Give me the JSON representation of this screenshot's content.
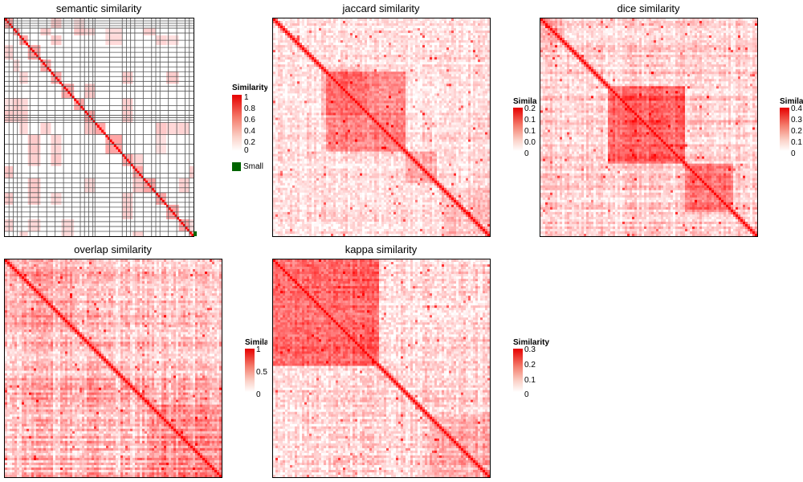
{
  "chart_data": [
    {
      "type": "heatmap",
      "title": "semantic similarity",
      "legend": {
        "title": "Similarity",
        "ticks": [
          "1",
          "0.8",
          "0.6",
          "0.4",
          "0.2",
          "0"
        ],
        "range": [
          0,
          1
        ],
        "extra_label": "Small"
      },
      "colors": {
        "high": "#e60000",
        "low": "#ffffff",
        "extra": "#006400"
      }
    },
    {
      "type": "heatmap",
      "title": "jaccard similarity",
      "legend": {
        "title": "Similarity",
        "ticks": [
          "0.2",
          "0.1",
          "0.1",
          "0.0",
          "0"
        ],
        "range": [
          0,
          0.2
        ]
      }
    },
    {
      "type": "heatmap",
      "title": "dice similarity",
      "legend": {
        "title": "Simila",
        "ticks": [
          "0.4",
          "0.3",
          "0.2",
          "0.1",
          "0"
        ],
        "range": [
          0,
          0.4
        ]
      }
    },
    {
      "type": "heatmap",
      "title": "overlap similarity",
      "legend": {
        "title": "Simila",
        "ticks": [
          "1",
          "0.5",
          "0"
        ],
        "range": [
          0,
          1
        ]
      }
    },
    {
      "type": "heatmap",
      "title": "kappa similarity",
      "legend": {
        "title": "Similarity",
        "ticks": [
          "0.3",
          "0.2",
          "0.1",
          "0"
        ],
        "range": [
          0,
          0.3
        ]
      }
    }
  ]
}
